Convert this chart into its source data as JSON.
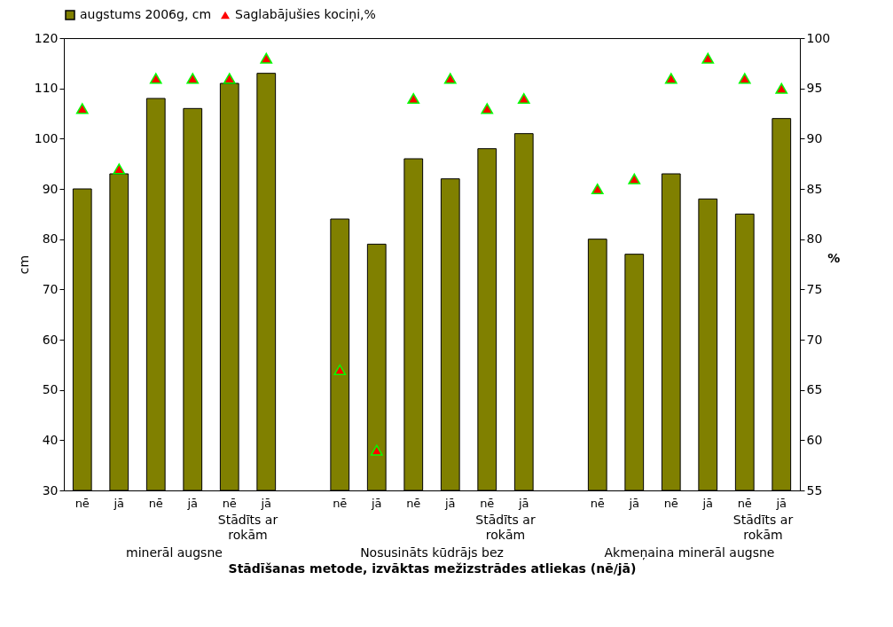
{
  "chart_data": {
    "type": "bar",
    "xlabel": "Stādīšanas metode, izvāktas mežizstrādes atliekas (nē/jā)",
    "ylabel": "cm",
    "y2label": "%",
    "categories": [
      "nē",
      "jā",
      "nē",
      "jā",
      "nē",
      "jā",
      null,
      "nē",
      "jā",
      "nē",
      "jā",
      "nē",
      "jā",
      null,
      "nē",
      "jā",
      "nē",
      "jā",
      "nē",
      "jā"
    ],
    "series": [
      {
        "name": "augstums 2006g, cm",
        "color": "#808000",
        "values": [
          90,
          93,
          108,
          106,
          111,
          113,
          null,
          84,
          79,
          96,
          92,
          98,
          101,
          null,
          80,
          77,
          93,
          88,
          85,
          104
        ]
      },
      {
        "name": "Saglabājušies kociņi,%",
        "type": "scatter",
        "axis": "y2",
        "marker": "triangle",
        "color": "#ff0000",
        "values": [
          93,
          87,
          96,
          96,
          96,
          98,
          null,
          67,
          59,
          94,
          96,
          93,
          94,
          null,
          85,
          86,
          96,
          98,
          96,
          95
        ]
      }
    ],
    "ylim": [
      30,
      120
    ],
    "yticks": [
      30,
      40,
      50,
      60,
      70,
      80,
      90,
      100,
      110,
      120
    ],
    "y2lim": [
      55,
      100
    ],
    "y2ticks": [
      55,
      60,
      65,
      70,
      75,
      80,
      85,
      90,
      95,
      100
    ],
    "legend": "top",
    "grid": false,
    "annotations": [
      "Stādīts ar rokām",
      "Stādīts ar rokām",
      "Stādīts ar rokām",
      "minerāl augsne",
      "Nosusināts kūdrājs bez",
      "Akmeņaina minerāl augsne"
    ]
  }
}
